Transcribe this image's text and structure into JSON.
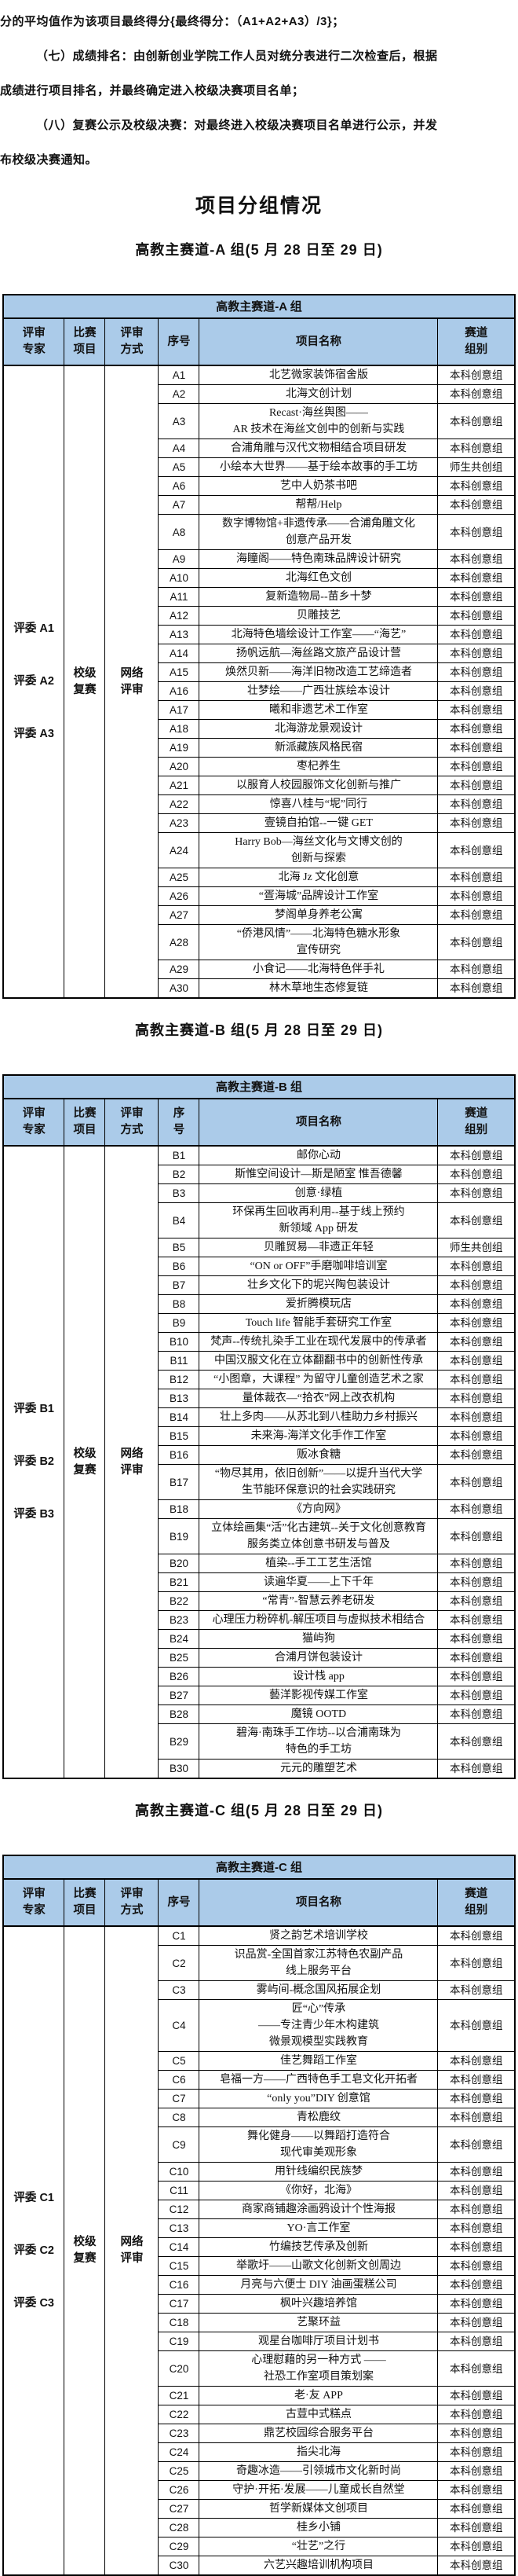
{
  "intro": {
    "lines": [
      {
        "text": "分的平均值作为该项目最终得分{最终得分：（A1+A2+A3）/3}；",
        "indent": false
      },
      {
        "text": "（七）成绩排名：由创新创业学院工作人员对统分表进行二次检查后，根据",
        "indent": true
      },
      {
        "text": "成绩进行项目排名，并最终确定进入校级决赛项目名单；",
        "indent": false
      },
      {
        "text": "（八）复赛公示及校级决赛：对最终进入校级决赛项目名单进行公示，并发",
        "indent": true
      },
      {
        "text": "布校级决赛通知。",
        "indent": false
      }
    ]
  },
  "page_title": "项目分组情况",
  "colors": {
    "table_header_bg": "#ABCBE9",
    "border": "#000000"
  },
  "tables": [
    {
      "subtitle": "高教主赛道-A 组(5 月 28 日至 29 日)",
      "table_title": "高教主赛道-A 组",
      "headers": {
        "expert": "评审\n专家",
        "project": "比赛\n项目",
        "method": "评审\n方式",
        "no": "序号",
        "name": "项目名称",
        "track": "赛道\n组别"
      },
      "experts": [
        "评委 A1",
        "评委 A2",
        "评委 A3"
      ],
      "stage": "校级\n复赛",
      "method": "网络\n评审",
      "rows": [
        {
          "no": "A1",
          "name": "北艺微家装饰宿舍版",
          "track": "本科创意组"
        },
        {
          "no": "A2",
          "name": "北海文创计划",
          "track": "本科创意组"
        },
        {
          "no": "A3",
          "name": "Recast·海丝舆图——\nAR 技术在海丝文创中的创新与实践",
          "track": "本科创意组"
        },
        {
          "no": "A4",
          "name": "合浦角雕与汉代文物相结合项目研发",
          "track": "本科创意组"
        },
        {
          "no": "A5",
          "name": "小绘本大世界——基于绘本故事的手工坊",
          "track": "师生共创组"
        },
        {
          "no": "A6",
          "name": "艺中人奶茶书吧",
          "track": "本科创意组"
        },
        {
          "no": "A7",
          "name": "帮帮/Help",
          "track": "本科创意组"
        },
        {
          "no": "A8",
          "name": "数字博物馆+非遗传承——合浦角雕文化\n创意产品开发",
          "track": "本科创意组"
        },
        {
          "no": "A9",
          "name": "海瞳阁——特色南珠品牌设计研究",
          "track": "本科创意组"
        },
        {
          "no": "A10",
          "name": "北海红色文创",
          "track": "本科创意组"
        },
        {
          "no": "A11",
          "name": "复新造物局--苗乡十梦",
          "track": "本科创意组"
        },
        {
          "no": "A12",
          "name": "贝雕技艺",
          "track": "本科创意组"
        },
        {
          "no": "A13",
          "name": "北海特色墙绘设计工作室——“海艺”",
          "track": "本科创意组"
        },
        {
          "no": "A14",
          "name": "扬帆远航—海丝路文旅产品设计营",
          "track": "本科创意组"
        },
        {
          "no": "A15",
          "name": "焕然贝新——海洋旧物改造工艺缔造者",
          "track": "本科创意组"
        },
        {
          "no": "A16",
          "name": "壮梦绘——广西壮族绘本设计",
          "track": "本科创意组"
        },
        {
          "no": "A17",
          "name": "曦和非遗艺术工作室",
          "track": "本科创意组"
        },
        {
          "no": "A18",
          "name": "北海游龙景观设计",
          "track": "本科创意组"
        },
        {
          "no": "A19",
          "name": "新派藏族风格民宿",
          "track": "本科创意组"
        },
        {
          "no": "A20",
          "name": "枣杞养生",
          "track": "本科创意组"
        },
        {
          "no": "A21",
          "name": "以服育人校园服饰文化创新与推广",
          "track": "本科创意组"
        },
        {
          "no": "A22",
          "name": "惊喜八桂与“坭”同行",
          "track": "本科创意组"
        },
        {
          "no": "A23",
          "name": "壹镜自拍馆--一键 GET",
          "track": "本科创意组"
        },
        {
          "no": "A24",
          "name": "Harry Bob—海丝文化与文博文创的\n创新与探索",
          "track": "本科创意组"
        },
        {
          "no": "A25",
          "name": "北海 Jz 文化创意",
          "track": "本科创意组"
        },
        {
          "no": "A26",
          "name": "“疍海城”品牌设计工作室",
          "track": "本科创意组"
        },
        {
          "no": "A27",
          "name": "梦阁单身养老公寓",
          "track": "本科创意组"
        },
        {
          "no": "A28",
          "name": "“侨港风情”——北海特色糖水形象\n宣传研究",
          "track": "本科创意组"
        },
        {
          "no": "A29",
          "name": "小食记——北海特色伴手礼",
          "track": "本科创意组"
        },
        {
          "no": "A30",
          "name": "林木草地生态修复链",
          "track": "本科创意组"
        }
      ]
    },
    {
      "subtitle": "高教主赛道-B 组(5 月 28 日至 29 日)",
      "table_title": "高教主赛道-B 组",
      "headers": {
        "expert": "评审\n专家",
        "project": "比赛\n项目",
        "method": "评审\n方式",
        "no": "序\n号",
        "name": "项目名称",
        "track": "赛道\n组别"
      },
      "experts": [
        "评委 B1",
        "评委 B2",
        "评委 B3"
      ],
      "stage": "校级\n复赛",
      "method": "网络\n评审",
      "rows": [
        {
          "no": "B1",
          "name": "邮你心动",
          "track": "本科创意组"
        },
        {
          "no": "B2",
          "name": "斯惟空间设计—斯是陋室 惟吾德馨",
          "track": "本科创意组"
        },
        {
          "no": "B3",
          "name": "创意·绿植",
          "track": "本科创意组"
        },
        {
          "no": "B4",
          "name": "环保再生回收再利用--基于线上预约\n新领域 App 研发",
          "track": "本科创意组"
        },
        {
          "no": "B5",
          "name": "贝雕贸易—非遗正年轻",
          "track": "师生共创组"
        },
        {
          "no": "B6",
          "name": "“ON or OFF”手磨咖啡培训室",
          "track": "本科创意组"
        },
        {
          "no": "B7",
          "name": "壮乡文化下的坭兴陶包装设计",
          "track": "本科创意组"
        },
        {
          "no": "B8",
          "name": "爱折腾模玩店",
          "track": "本科创意组"
        },
        {
          "no": "B9",
          "name": "Touch life 智能手套研究工作室",
          "track": "本科创意组"
        },
        {
          "no": "B10",
          "name": "梵声--传统扎染手工业在现代发展中的传承者",
          "track": "本科创意组"
        },
        {
          "no": "B11",
          "name": "中国汉服文化在立体翻翻书中的创新性传承",
          "track": "本科创意组"
        },
        {
          "no": "B12",
          "name": "“小图章，大课程” 为留守儿童创造艺术之家",
          "track": "本科创意组"
        },
        {
          "no": "B13",
          "name": "量体裁衣—“拾衣”网上改衣机构",
          "track": "本科创意组"
        },
        {
          "no": "B14",
          "name": "壮上多肉——从苏北到八桂助力乡村振兴",
          "track": "本科创意组"
        },
        {
          "no": "B15",
          "name": "未来海-海洋文化手作工作室",
          "track": "本科创意组"
        },
        {
          "no": "B16",
          "name": "贩冰食糖",
          "track": "本科创意组"
        },
        {
          "no": "B17",
          "name": "“物尽其用，依旧创新”——以提升当代大学\n生节能环保意识的社会实践研究",
          "track": "本科创意组"
        },
        {
          "no": "B18",
          "name": "《方向网》",
          "track": "本科创意组"
        },
        {
          "no": "B19",
          "name": "立体绘画集“活”化古建筑--关于文化创意教育\n服务类立体创意书研发与普及",
          "track": "本科创意组"
        },
        {
          "no": "B20",
          "name": "植染--手工工艺生活馆",
          "track": "本科创意组"
        },
        {
          "no": "B21",
          "name": "读遍华夏——上下千年",
          "track": "本科创意组"
        },
        {
          "no": "B22",
          "name": "“常青”-智慧云养老研发",
          "track": "本科创意组"
        },
        {
          "no": "B23",
          "name": "心理压力粉碎机-解压项目与虚拟技术相结合",
          "track": "本科创意组"
        },
        {
          "no": "B24",
          "name": "猫屿狗",
          "track": "本科创意组"
        },
        {
          "no": "B25",
          "name": "合浦月饼包装设计",
          "track": "本科创意组"
        },
        {
          "no": "B26",
          "name": "设计栈 app",
          "track": "本科创意组"
        },
        {
          "no": "B27",
          "name": "藝洋影视传媒工作室",
          "track": "本科创意组"
        },
        {
          "no": "B28",
          "name": "魔镜 OOTD",
          "track": "本科创意组"
        },
        {
          "no": "B29",
          "name": "碧海·南珠手工作坊--以合浦南珠为\n特色的手工坊",
          "track": "本科创意组"
        },
        {
          "no": "B30",
          "name": "元元的雕塑艺术",
          "track": "本科创意组"
        }
      ]
    },
    {
      "subtitle": "高教主赛道-C 组(5 月 28 日至 29 日)",
      "table_title": "高教主赛道-C 组",
      "headers": {
        "expert": "评审\n专家",
        "project": "比赛\n项目",
        "method": "评审\n方式",
        "no": "序号",
        "name": "项目名称",
        "track": "赛道\n组别"
      },
      "experts": [
        "评委 C1",
        "评委 C2",
        "评委 C3"
      ],
      "stage": "校级\n复赛",
      "method": "网络\n评审",
      "rows": [
        {
          "no": "C1",
          "name": "贤之韵艺术培训学校",
          "track": "本科创意组"
        },
        {
          "no": "C2",
          "name": "识品赏-全国首家江苏特色农副产品\n线上服务平台",
          "track": "本科创意组"
        },
        {
          "no": "C3",
          "name": "雾屿间-概念国风拓展企划",
          "track": "本科创意组"
        },
        {
          "no": "C4",
          "name": "匠“心”传承\n——专注青少年木构建筑\n微景观模型实践教育",
          "track": "本科创意组"
        },
        {
          "no": "C5",
          "name": "佳艺舞蹈工作室",
          "track": "本科创意组"
        },
        {
          "no": "C6",
          "name": "皂福一方——广西特色手工皂文化开拓者",
          "track": "本科创意组"
        },
        {
          "no": "C7",
          "name": "“only you”DIY 创意馆",
          "track": "本科创意组"
        },
        {
          "no": "C8",
          "name": "青松鹿纹",
          "track": "本科创意组"
        },
        {
          "no": "C9",
          "name": "舞化健身——以舞蹈打造符合\n现代审美观形象",
          "track": "本科创意组"
        },
        {
          "no": "C10",
          "name": "用针线编织民族梦",
          "track": "本科创意组"
        },
        {
          "no": "C11",
          "name": "《你好，北海》",
          "track": "本科创意组"
        },
        {
          "no": "C12",
          "name": "商家商铺趣涂画鸦设计个性海报",
          "track": "本科创意组"
        },
        {
          "no": "C13",
          "name": "YO·言工作室",
          "track": "本科创意组"
        },
        {
          "no": "C14",
          "name": "竹编技艺传承及创新",
          "track": "本科创意组"
        },
        {
          "no": "C15",
          "name": "举歌圩——山歌文化创新文创周边",
          "track": "本科创意组"
        },
        {
          "no": "C16",
          "name": "月亮与六便士 DIY 油画蛋糕公司",
          "track": "本科创意组"
        },
        {
          "no": "C17",
          "name": "枫叶兴趣培养馆",
          "track": "本科创意组"
        },
        {
          "no": "C18",
          "name": "艺聚环益",
          "track": "本科创意组"
        },
        {
          "no": "C19",
          "name": "观星台咖啡厅项目计划书",
          "track": "本科创意组"
        },
        {
          "no": "C20",
          "name": "心理慰藉的另一种方式 ——\n社恐工作室项目策划案",
          "track": "本科创意组"
        },
        {
          "no": "C21",
          "name": "老·友 APP",
          "track": "本科创意组"
        },
        {
          "no": "C22",
          "name": "古荳中式糕点",
          "track": "本科创意组"
        },
        {
          "no": "C23",
          "name": "鼎艺校园综合服务平台",
          "track": "本科创意组"
        },
        {
          "no": "C24",
          "name": "指尖北海",
          "track": "本科创意组"
        },
        {
          "no": "C25",
          "name": "奇趣冰造——引领城市文化新时尚",
          "track": "本科创意组"
        },
        {
          "no": "C26",
          "name": "守护·开拓·发展——儿童成长自然堂",
          "track": "本科创意组"
        },
        {
          "no": "C27",
          "name": "哲学新媒体文创项目",
          "track": "本科创意组"
        },
        {
          "no": "C28",
          "name": "桂乡小铺",
          "track": "本科创意组"
        },
        {
          "no": "C29",
          "name": "“壮艺”之行",
          "track": "本科创意组"
        },
        {
          "no": "C30",
          "name": "六艺兴趣培训机构项目",
          "track": "本科创意组"
        }
      ]
    }
  ]
}
